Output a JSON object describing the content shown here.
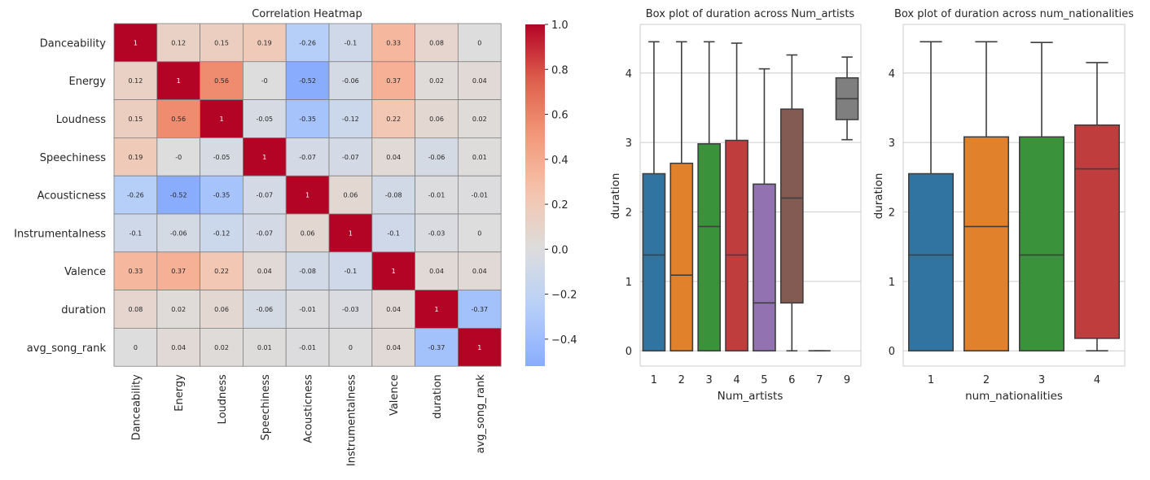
{
  "chart_data": [
    {
      "type": "heatmap",
      "title": "Correlation Heatmap",
      "row_labels": [
        "Danceability",
        "Energy",
        "Loudness",
        "Speechiness",
        "Acousticness",
        "Instrumentalness",
        "Valence",
        "duration",
        "avg_song_rank"
      ],
      "col_labels": [
        "Danceability",
        "Energy",
        "Loudness",
        "Speechiness",
        "Acousticness",
        "Instrumentalness",
        "Valence",
        "duration",
        "avg_song_rank"
      ],
      "values": [
        [
          1,
          0.12,
          0.15,
          0.19,
          -0.26,
          -0.1,
          0.33,
          0.08,
          0
        ],
        [
          0.12,
          1,
          0.56,
          0,
          -0.52,
          -0.06,
          0.37,
          0.02,
          0.04
        ],
        [
          0.15,
          0.56,
          1,
          -0.05,
          -0.35,
          -0.12,
          0.22,
          0.06,
          0.02
        ],
        [
          0.19,
          0,
          -0.05,
          1,
          -0.07,
          -0.07,
          0.04,
          -0.06,
          0.01
        ],
        [
          -0.26,
          -0.52,
          -0.35,
          -0.07,
          1,
          0.06,
          -0.08,
          -0.01,
          -0.01
        ],
        [
          -0.1,
          -0.06,
          -0.12,
          -0.07,
          0.06,
          1,
          -0.1,
          -0.03,
          0
        ],
        [
          0.33,
          0.37,
          0.22,
          0.04,
          -0.08,
          -0.1,
          1,
          0.04,
          0.04
        ],
        [
          0.08,
          0.02,
          0.06,
          -0.06,
          -0.01,
          -0.03,
          0.04,
          1,
          -0.37
        ],
        [
          0,
          0.04,
          0.02,
          0.01,
          -0.01,
          0,
          0.04,
          -0.37,
          1
        ]
      ],
      "cell_labels": [
        [
          "1",
          "0.12",
          "0.15",
          "0.19",
          "-0.26",
          "-0.1",
          "0.33",
          "0.08",
          "0"
        ],
        [
          "0.12",
          "1",
          "0.56",
          "-0",
          "-0.52",
          "-0.06",
          "0.37",
          "0.02",
          "0.04"
        ],
        [
          "0.15",
          "0.56",
          "1",
          "-0.05",
          "-0.35",
          "-0.12",
          "0.22",
          "0.06",
          "0.02"
        ],
        [
          "0.19",
          "-0",
          "-0.05",
          "1",
          "-0.07",
          "-0.07",
          "0.04",
          "-0.06",
          "0.01"
        ],
        [
          "-0.26",
          "-0.52",
          "-0.35",
          "-0.07",
          "1",
          "0.06",
          "-0.08",
          "-0.01",
          "-0.01"
        ],
        [
          "-0.1",
          "-0.06",
          "-0.12",
          "-0.07",
          "0.06",
          "1",
          "-0.1",
          "-0.03",
          "0"
        ],
        [
          "0.33",
          "0.37",
          "0.22",
          "0.04",
          "-0.08",
          "-0.1",
          "1",
          "0.04",
          "0.04"
        ],
        [
          "0.08",
          "0.02",
          "0.06",
          "-0.06",
          "-0.01",
          "-0.03",
          "0.04",
          "1",
          "-0.37"
        ],
        [
          "0",
          "0.04",
          "0.02",
          "0.01",
          "-0.01",
          "0",
          "0.04",
          "-0.37",
          "1"
        ]
      ],
      "colormap": "coolwarm",
      "vmin": -0.52,
      "vmax": 1,
      "colorbar_ticks": [
        1.0,
        0.8,
        0.6,
        0.4,
        0.2,
        0.0,
        -0.2,
        -0.4
      ],
      "colorbar_tick_labels": [
        "1.0",
        "0.8",
        "0.6",
        "0.4",
        "0.2",
        "0.0",
        "−0.2",
        "−0.4"
      ]
    },
    {
      "type": "box",
      "title": "Box plot of duration across Num_artists",
      "xlabel": "Num_artists",
      "ylabel": "duration",
      "categories": [
        "1",
        "2",
        "3",
        "4",
        "5",
        "6",
        "7",
        "9"
      ],
      "ylim": [
        -0.22,
        4.7
      ],
      "yticks": [
        0,
        1,
        2,
        3,
        4
      ],
      "grid": true,
      "boxes": [
        {
          "category": "1",
          "whislo": 0,
          "q1": 0,
          "med": 1.38,
          "q3": 2.55,
          "whishi": 4.45,
          "color": "#3274a1"
        },
        {
          "category": "2",
          "whislo": 0,
          "q1": 0,
          "med": 1.09,
          "q3": 2.7,
          "whishi": 4.45,
          "color": "#e1812c"
        },
        {
          "category": "3",
          "whislo": 0,
          "q1": 0,
          "med": 1.79,
          "q3": 2.98,
          "whishi": 4.45,
          "color": "#3a923a"
        },
        {
          "category": "4",
          "whislo": 0,
          "q1": 0,
          "med": 1.38,
          "q3": 3.03,
          "whishi": 4.43,
          "color": "#c03d3e"
        },
        {
          "category": "5",
          "whislo": 0,
          "q1": 0,
          "med": 0.69,
          "q3": 2.4,
          "whishi": 4.06,
          "color": "#9372b2"
        },
        {
          "category": "6",
          "whislo": 0,
          "q1": 0.69,
          "med": 2.2,
          "q3": 3.48,
          "whishi": 4.26,
          "color": "#845b53"
        },
        {
          "category": "7",
          "whislo": 0,
          "q1": 0,
          "med": 0,
          "q3": 0,
          "whishi": 0,
          "color": "#d684bd"
        },
        {
          "category": "9",
          "whislo": 3.04,
          "q1": 3.33,
          "med": 3.63,
          "q3": 3.93,
          "whishi": 4.23,
          "color": "#7f7f7f"
        }
      ]
    },
    {
      "type": "box",
      "title": "Box plot of duration across num_nationalities",
      "xlabel": "num_nationalities",
      "ylabel": "duration",
      "categories": [
        "1",
        "2",
        "3",
        "4"
      ],
      "ylim": [
        -0.22,
        4.7
      ],
      "yticks": [
        0,
        1,
        2,
        3,
        4
      ],
      "grid": true,
      "boxes": [
        {
          "category": "1",
          "whislo": 0,
          "q1": 0,
          "med": 1.38,
          "q3": 2.55,
          "whishi": 4.45,
          "color": "#3274a1"
        },
        {
          "category": "2",
          "whislo": 0,
          "q1": 0,
          "med": 1.79,
          "q3": 3.08,
          "whishi": 4.45,
          "color": "#e1812c"
        },
        {
          "category": "3",
          "whislo": 0,
          "q1": 0,
          "med": 1.38,
          "q3": 3.08,
          "whishi": 4.44,
          "color": "#3a923a"
        },
        {
          "category": "4",
          "whislo": 0,
          "q1": 0.18,
          "med": 2.62,
          "q3": 3.25,
          "whishi": 4.15,
          "color": "#c03d3e"
        }
      ]
    }
  ]
}
